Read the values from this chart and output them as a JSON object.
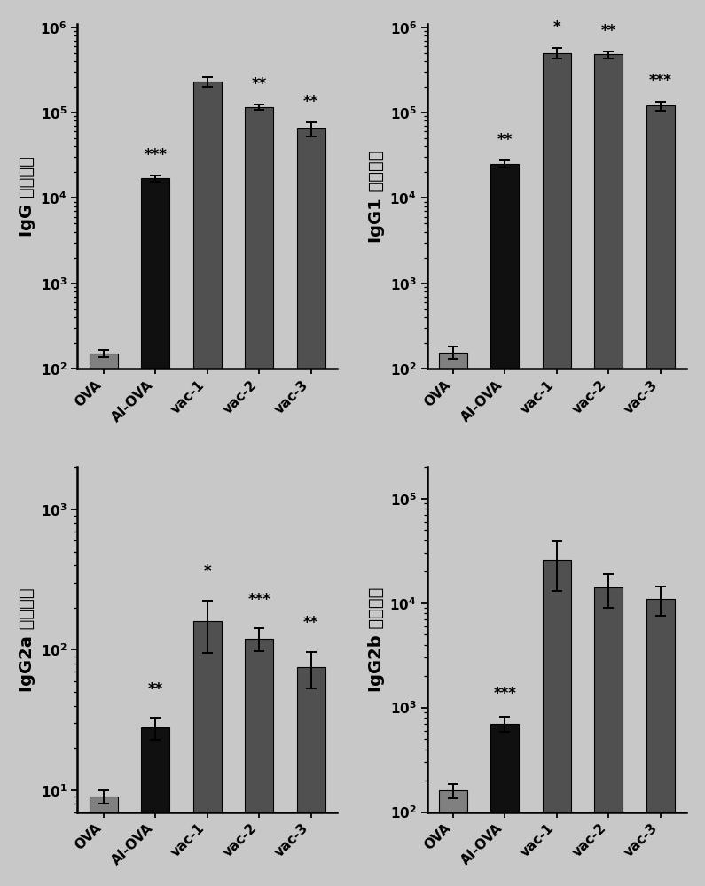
{
  "fig_bg": "#c8c8c8",
  "plot_bg": "#c8c8c8",
  "bar_width": 0.55,
  "ylabel_fontsize": 14,
  "tick_fontsize": 11,
  "star_fontsize": 12,
  "xtick_fontsize": 11,
  "subplots": [
    {
      "ylabel_latin": "IgG",
      "ylabel_chinese": "抗体滴度",
      "categories": [
        "OVA",
        "AI-OVA",
        "vac-1",
        "vac-2",
        "vac-3"
      ],
      "bar_values": [
        150,
        17000,
        230000,
        115000,
        65000
      ],
      "bar_errors": [
        15,
        1500,
        28000,
        8000,
        12000
      ],
      "bar_colors": [
        "#808080",
        "#101010",
        "#505050",
        "#505050",
        "#505050"
      ],
      "ymin": 100,
      "ymax": 1100000,
      "yticks": [
        100,
        1000,
        10000,
        100000,
        1000000
      ],
      "ytick_exponents": [
        "2",
        "3",
        "4",
        "5",
        "6"
      ],
      "significance": [
        "",
        "***",
        "",
        "**",
        "**"
      ]
    },
    {
      "ylabel_latin": "IgG1",
      "ylabel_chinese": "抗体滴度",
      "categories": [
        "OVA",
        "AI-OVA",
        "vac-1",
        "vac-2",
        "vac-3"
      ],
      "bar_values": [
        155,
        25000,
        500000,
        480000,
        120000
      ],
      "bar_errors": [
        25,
        2500,
        70000,
        45000,
        15000
      ],
      "bar_colors": [
        "#808080",
        "#101010",
        "#505050",
        "#505050",
        "#505050"
      ],
      "ymin": 100,
      "ymax": 1100000,
      "yticks": [
        100,
        1000,
        10000,
        100000,
        1000000
      ],
      "ytick_exponents": [
        "2",
        "3",
        "4",
        "5",
        "6"
      ],
      "significance": [
        "",
        "**",
        "*",
        "**",
        "***"
      ]
    },
    {
      "ylabel_latin": "IgG2a",
      "ylabel_chinese": "抗体滴度",
      "categories": [
        "OVA",
        "AI-OVA",
        "vac-1",
        "vac-2",
        "vac-3"
      ],
      "bar_values": [
        9,
        28,
        160,
        120,
        75
      ],
      "bar_errors": [
        1,
        5,
        65,
        22,
        22
      ],
      "bar_colors": [
        "#808080",
        "#101010",
        "#505050",
        "#505050",
        "#505050"
      ],
      "ymin": 7,
      "ymax": 2000,
      "yticks": [
        10,
        100,
        1000
      ],
      "ytick_exponents": [
        "1",
        "2",
        "3"
      ],
      "significance": [
        "",
        "**",
        "*",
        "***",
        "**"
      ]
    },
    {
      "ylabel_latin": "IgG2b",
      "ylabel_chinese": "抗体滴度",
      "categories": [
        "OVA",
        "AI-OVA",
        "vac-1",
        "vac-2",
        "vac-3"
      ],
      "bar_values": [
        160,
        700,
        26000,
        14000,
        11000
      ],
      "bar_errors": [
        25,
        110,
        13000,
        5000,
        3500
      ],
      "bar_colors": [
        "#808080",
        "#101010",
        "#505050",
        "#505050",
        "#505050"
      ],
      "ymin": 100,
      "ymax": 200000,
      "yticks": [
        100,
        1000,
        10000,
        100000
      ],
      "ytick_exponents": [
        "2",
        "3",
        "4",
        "5"
      ],
      "significance": [
        "",
        "***",
        "",
        "",
        ""
      ]
    }
  ]
}
